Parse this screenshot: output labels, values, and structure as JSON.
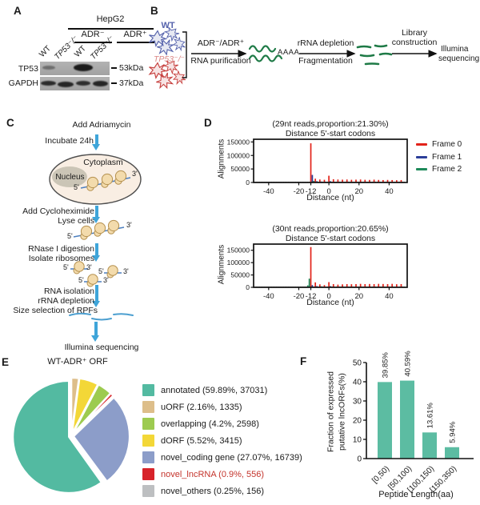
{
  "figure": {
    "A": {
      "panel_label": "A",
      "cell_line": "HepG2",
      "condition_neg": "ADR⁻",
      "condition_pos": "ADR⁺",
      "lanes": [
        "WT",
        "TP53⁻/⁻",
        "WT",
        "TP53⁻/⁻"
      ],
      "row1_protein": "TP53",
      "row2_protein": "GAPDH",
      "row1_marker": "53kDa",
      "row2_marker": "37kDa"
    },
    "B": {
      "panel_label": "B",
      "wt_label": "WT",
      "ko_label": "TP53⁻/⁻",
      "step1_top": "ADR⁻/ADR⁺",
      "step1_bottom": "RNA purification",
      "polya": "AAAA",
      "step2_top": "rRNA depletion",
      "step2_bottom": "Fragmentation",
      "step3_top_line1": "Library",
      "step3_top_line2": "construction",
      "result_line1": "Illumina",
      "result_line2": "sequencing"
    },
    "C": {
      "panel_label": "C",
      "step1": "Add Adriamycin",
      "step1_side": "Incubate 24h",
      "cytoplasm": "Cytoplasm",
      "nucleus": "Nucleus",
      "five_prime": "5'",
      "three_prime": "3'",
      "step2_line1": "Add Cycloheximide",
      "step2_line2": "Lyse cells",
      "step3_line1": "RNase I digestion",
      "step3_line2": "Isolate ribosomes",
      "step4_line1": "RNA isolation",
      "step4_line2": "rRNA depletion",
      "step4_line3": "Size selection of RPFs",
      "final_step": "Illumina sequencing"
    },
    "D": {
      "panel_label": "D",
      "ylabel": "Alignments",
      "xlabel": "Distance (nt)",
      "chart1_title1": "(29nt reads,proportion:21.30%)",
      "chart1_title2": "Distance 5'-start codons",
      "chart2_title1": "(30nt reads,proportion:20.65%)",
      "chart2_title2": "Distance 5'-start codons",
      "legend_labels": [
        "Frame 0",
        "Frame 1",
        "Frame 2"
      ],
      "legend_colors": [
        "#E2231A",
        "#2B3E99",
        "#1E8A5A"
      ]
    },
    "E": {
      "panel_label": "E",
      "title": "WT-ADR⁺ ORF",
      "legend_items": [
        {
          "text": "annotated (59.89%, 37031)",
          "color_text": "#1a1a1a"
        },
        {
          "text": "uORF (2.16%, 1335)",
          "color_text": "#1a1a1a"
        },
        {
          "text": "overlapping (4.2%, 2598)",
          "color_text": "#1a1a1a"
        },
        {
          "text": "dORF (5.52%, 3415)",
          "color_text": "#1a1a1a"
        },
        {
          "text": "novel_coding gene (27.07%, 16739)",
          "color_text": "#1a1a1a"
        },
        {
          "text": "novel_lncRNA (0.9%, 556)",
          "color_text": "#C4342C"
        },
        {
          "text": "novel_others (0.25%, 156)",
          "color_text": "#1a1a1a"
        }
      ]
    },
    "F": {
      "panel_label": "F",
      "ylabel_line1": "Fraction of expressed",
      "ylabel_line2": "putative lncORFs(%)",
      "xlabel": "Peptide Length(aa)"
    }
  },
  "chart_data": [
    {
      "type": "bar",
      "panel": "D-top",
      "title": "(29nt reads,proportion:21.30%) Distance 5'-start codons",
      "xlabel": "Distance (nt)",
      "ylabel": "Alignments",
      "ylim": [
        0,
        160000
      ],
      "xlim": [
        -50,
        52
      ],
      "yticks": [
        0,
        50000,
        100000,
        150000
      ],
      "xticks": [
        -40,
        -20,
        -12,
        0,
        20,
        40
      ],
      "frames": [
        "Frame 0",
        "Frame 1",
        "Frame 2"
      ],
      "baseline": 3000,
      "bars": [
        [
          -12,
          145000,
          0
        ],
        [
          -11,
          28000,
          1
        ],
        [
          -10,
          6000,
          2
        ],
        [
          -9,
          14000,
          0
        ],
        [
          -8,
          5000,
          1
        ],
        [
          -7,
          3000,
          2
        ],
        [
          -6,
          11000,
          0
        ],
        [
          -5,
          3500,
          1
        ],
        [
          -3,
          10000,
          0
        ],
        [
          -2,
          3000,
          1
        ],
        [
          0,
          25000,
          0
        ],
        [
          1,
          5000,
          1
        ],
        [
          3,
          12000,
          0
        ],
        [
          4,
          3000,
          1
        ],
        [
          6,
          11000,
          0
        ],
        [
          9,
          10500,
          0
        ],
        [
          12,
          11000,
          0
        ],
        [
          15,
          10000,
          0
        ],
        [
          18,
          10500,
          0
        ],
        [
          21,
          11000,
          0
        ],
        [
          24,
          10000,
          0
        ],
        [
          27,
          9500,
          0
        ],
        [
          30,
          10500,
          0
        ],
        [
          33,
          9500,
          0
        ],
        [
          36,
          9000,
          0
        ],
        [
          39,
          9500,
          0
        ],
        [
          42,
          9000,
          0
        ],
        [
          45,
          8500,
          0
        ],
        [
          48,
          9000,
          0
        ]
      ]
    },
    {
      "type": "bar",
      "panel": "D-bottom",
      "title": "(30nt reads,proportion:20.65%) Distance 5'-start codons",
      "xlabel": "Distance (nt)",
      "ylabel": "Alignments",
      "ylim": [
        0,
        175000
      ],
      "xlim": [
        -50,
        52
      ],
      "yticks": [
        0,
        50000,
        100000,
        150000
      ],
      "xticks": [
        -40,
        -20,
        -12,
        0,
        20,
        40
      ],
      "frames": [
        "Frame 0",
        "Frame 1",
        "Frame 2"
      ],
      "baseline": 3000,
      "bars": [
        [
          -14,
          8000,
          2
        ],
        [
          -13,
          35000,
          2
        ],
        [
          -12,
          163000,
          0
        ],
        [
          -11,
          9000,
          1
        ],
        [
          -9,
          20000,
          0
        ],
        [
          -8,
          5000,
          1
        ],
        [
          -6,
          12000,
          0
        ],
        [
          -5,
          4000,
          2
        ],
        [
          -3,
          9000,
          0
        ],
        [
          0,
          21000,
          0
        ],
        [
          1,
          5000,
          1
        ],
        [
          3,
          13000,
          0
        ],
        [
          6,
          11000,
          0
        ],
        [
          9,
          12000,
          0
        ],
        [
          12,
          13000,
          0
        ],
        [
          15,
          12500,
          0
        ],
        [
          18,
          13000,
          0
        ],
        [
          21,
          14000,
          0
        ],
        [
          24,
          13000,
          0
        ],
        [
          27,
          13500,
          0
        ],
        [
          30,
          13000,
          0
        ],
        [
          33,
          14000,
          0
        ],
        [
          36,
          13500,
          0
        ],
        [
          39,
          13000,
          0
        ],
        [
          42,
          14000,
          0
        ],
        [
          45,
          12500,
          0
        ],
        [
          48,
          13000,
          0
        ]
      ]
    },
    {
      "type": "pie",
      "panel": "E",
      "title": "WT-ADR+ ORF",
      "labels": [
        "annotated",
        "uORF",
        "overlapping",
        "dORF",
        "novel_coding gene",
        "novel_lncRNA",
        "novel_others"
      ],
      "values_pct": [
        59.89,
        2.16,
        4.2,
        5.52,
        27.07,
        0.9,
        0.25
      ],
      "counts": [
        37031,
        1335,
        2598,
        3415,
        16739,
        556,
        156
      ],
      "colors": [
        "#53BAA1",
        "#DDBE8A",
        "#9DCB50",
        "#F3D737",
        "#8C9DC9",
        "#D7232A",
        "#BDBFC1"
      ],
      "draw_order": [
        1,
        3,
        2,
        5,
        4,
        6,
        0
      ],
      "legend_position": "right"
    },
    {
      "type": "bar",
      "panel": "F",
      "categories": [
        "[0,50)",
        "[50,100)",
        "[100,150)",
        "[150,350)"
      ],
      "values": [
        39.85,
        40.59,
        13.61,
        5.94
      ],
      "value_labels": [
        "39.85%",
        "40.59%",
        "13.61%",
        "5.94%"
      ],
      "xlabel": "Peptide Length(aa)",
      "ylabel": "Fraction of expressed putative lncORFs(%)",
      "ylim": [
        0,
        50
      ],
      "yticks": [
        0,
        10,
        20,
        30,
        40,
        50
      ],
      "bar_color": "#5CBCA2"
    }
  ]
}
